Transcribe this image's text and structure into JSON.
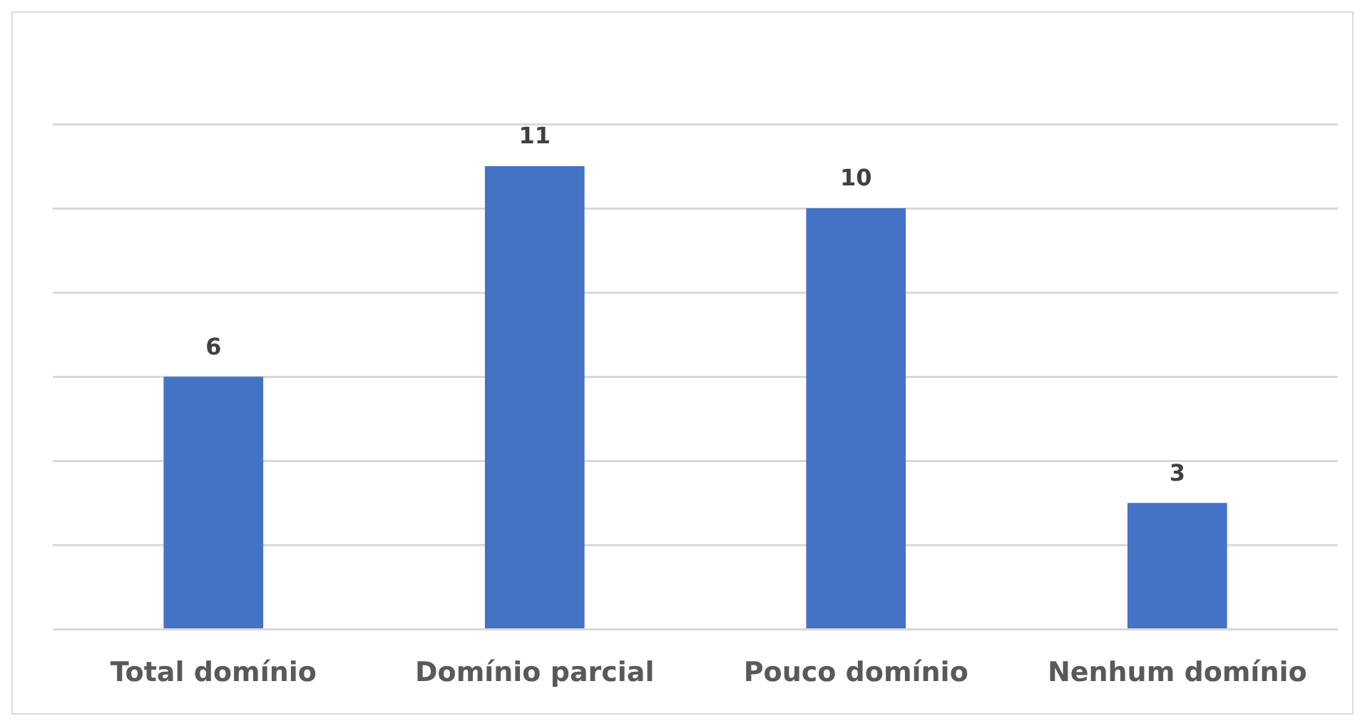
{
  "chart_data": {
    "type": "bar",
    "categories": [
      "Total domínio",
      "Domínio parcial",
      "Pouco domínio",
      "Nenhum domínio"
    ],
    "values": [
      6,
      11,
      10,
      3
    ],
    "color": "#4472c4",
    "ylim": [
      0,
      12
    ],
    "yticks": [
      {
        "value": 0,
        "label": null
      },
      {
        "value": 2,
        "label": null
      },
      {
        "value": 4,
        "label": null
      },
      {
        "value": 6,
        "label": null
      },
      {
        "value": 8,
        "label": null
      },
      {
        "value": 10,
        "label": null
      },
      {
        "value": 12,
        "label": null
      }
    ],
    "grid": "y",
    "tick_labels": "x",
    "data_labels": true
  }
}
